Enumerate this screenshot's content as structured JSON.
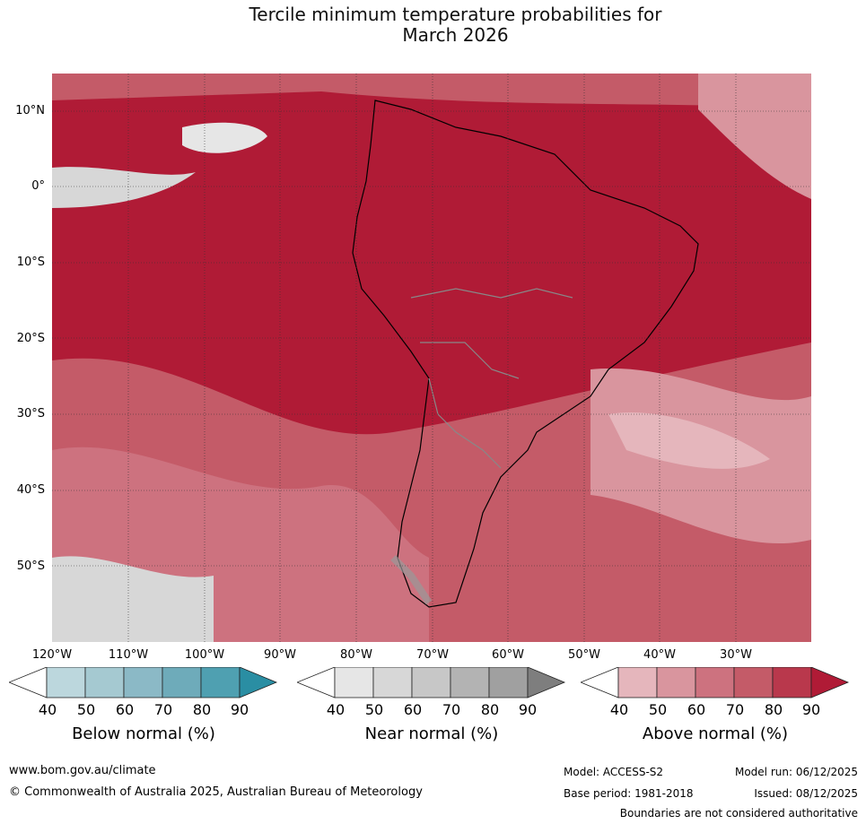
{
  "title_line1": "Tercile minimum temperature probabilities for",
  "title_line2": "March 2026",
  "map": {
    "lat_labels": [
      "10°N",
      "0°",
      "10°S",
      "20°S",
      "30°S",
      "40°S",
      "50°S"
    ],
    "lon_labels": [
      "120°W",
      "110°W",
      "100°W",
      "90°W",
      "80°W",
      "70°W",
      "60°W",
      "50°W",
      "40°W",
      "30°W"
    ]
  },
  "legend": {
    "below": {
      "title": "Below normal (%)",
      "ticks": [
        "40",
        "50",
        "60",
        "70",
        "80",
        "90"
      ],
      "colors": [
        "#ffffff",
        "#bcd7dd",
        "#a5c9d1",
        "#8bb9c6",
        "#6eabba",
        "#4fa0b1",
        "#2a8ea3"
      ]
    },
    "near": {
      "title": "Near normal (%)",
      "ticks": [
        "40",
        "50",
        "60",
        "70",
        "80",
        "90"
      ],
      "colors": [
        "#ffffff",
        "#e6e6e6",
        "#d7d7d7",
        "#c7c7c7",
        "#b3b3b3",
        "#a0a0a0",
        "#7e7e7e"
      ]
    },
    "above": {
      "title": "Above normal (%)",
      "ticks": [
        "40",
        "50",
        "60",
        "70",
        "80",
        "90"
      ],
      "colors": [
        "#ffffff",
        "#e5b6bc",
        "#d9959e",
        "#cd727f",
        "#c45b68",
        "#b9384c",
        "#b01b36"
      ]
    }
  },
  "footer": {
    "website": "www.bom.gov.au/climate",
    "copyright": "© Commonwealth of Australia 2025, Australian Bureau of Meteorology",
    "model": "Model: ACCESS-S2",
    "model_run": "Model run: 06/12/2025",
    "base_period": "Base period: 1981-2018",
    "issued": "Issued: 08/12/2025",
    "disclaimer": "Boundaries are not considered authoritative"
  }
}
